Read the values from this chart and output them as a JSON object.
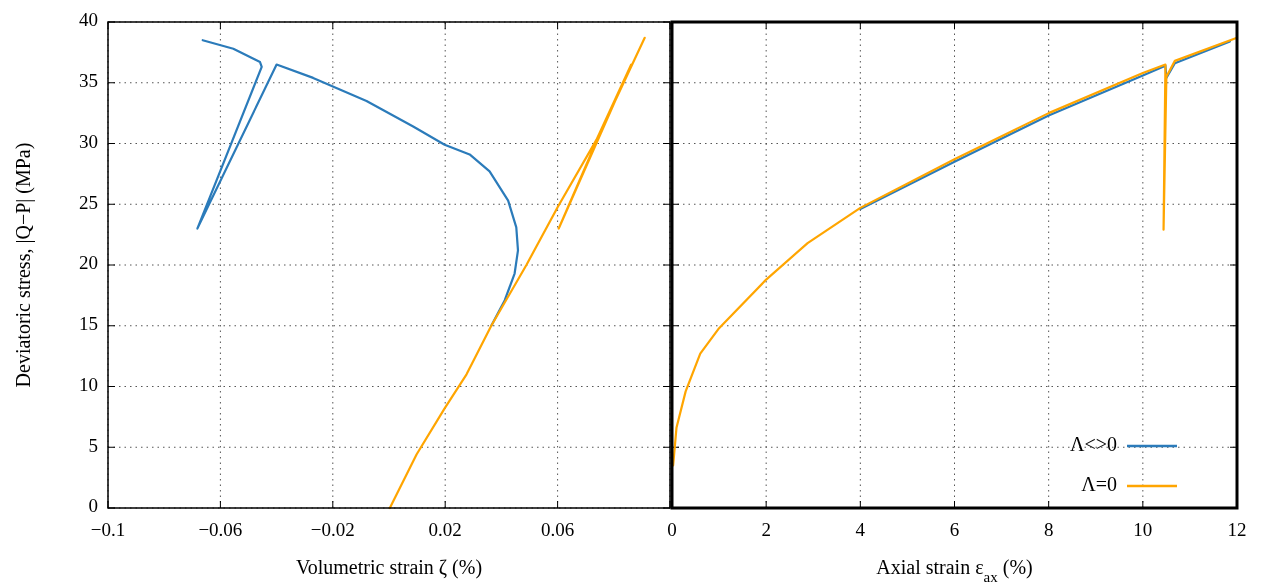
{
  "chart_data": [
    {
      "type": "line",
      "xlabel": "Volumetric strain ζ (%)",
      "ylabel": "Deviatoric stress, |Q−P| (MPa)",
      "xlim": [
        -0.1,
        0.1
      ],
      "xticks": [
        {
          "value": -0.1,
          "label": "−0.1"
        },
        {
          "value": -0.06,
          "label": "−0.06"
        },
        {
          "value": -0.02,
          "label": "−0.02"
        },
        0.02,
        0.06,
        {
          "value": 0.1,
          "label": null
        }
      ],
      "ylim": [
        0,
        40
      ],
      "yticks": [
        0,
        5,
        10,
        15,
        20,
        25,
        30,
        35,
        40
      ],
      "grid": true,
      "line_style": "solid",
      "series": [
        {
          "color": "#2b7bba",
          "x": [
            0.0364,
            0.0412,
            0.0447,
            0.0459,
            0.0453,
            0.0424,
            0.0358,
            0.0287,
            0.0198,
            0.0086,
            -0.008,
            -0.027,
            -0.04,
            -0.0682,
            -0.0453,
            -0.0459,
            -0.0554,
            -0.0663
          ],
          "values": [
            15.0,
            17.1,
            19.3,
            21.2,
            23.1,
            25.3,
            27.7,
            29.1,
            29.9,
            31.4,
            33.5,
            35.4,
            36.5,
            23.0,
            36.3,
            36.7,
            37.8,
            38.5
          ]
        },
        {
          "color": "#ffa500",
          "x": [
            0.0003,
            0.0098,
            0.0198,
            0.0276,
            0.0364,
            0.0489,
            0.0601,
            0.0738,
            0.0862,
            0.0604,
            0.075,
            0.091
          ],
          "values": [
            0,
            4.4,
            8.2,
            11.0,
            15.0,
            20.0,
            24.8,
            30.3,
            36.5,
            23.0,
            30.8,
            38.7
          ]
        }
      ]
    },
    {
      "type": "line",
      "xlabel": "Axial strain ε$_{ax}$ (%)",
      "xlim": [
        0,
        12
      ],
      "xticks": [
        0,
        2,
        4,
        6,
        8,
        10,
        12
      ],
      "ylim": [
        0,
        40
      ],
      "yticks": [
        0,
        5,
        10,
        15,
        20,
        25,
        30,
        35,
        40
      ],
      "tick_labels": "x",
      "grid": true,
      "legend": "bottom right",
      "line_style": "solid",
      "series": [
        {
          "name": "Λ<>0",
          "color": "#2b7bba",
          "x": [
            4.0,
            6.0,
            8.0,
            10.0,
            10.48,
            10.5,
            10.68,
            11.85
          ],
          "values": [
            24.6,
            28.5,
            32.3,
            35.6,
            36.4,
            35.4,
            36.6,
            38.4
          ]
        },
        {
          "name": "Λ=0",
          "color": "#ffa500",
          "x": [
            0.024,
            0.095,
            0.29,
            0.6,
            1.0,
            2.0,
            2.88,
            4.0,
            6.0,
            8.0,
            10.0,
            10.48,
            10.44,
            10.5,
            10.68,
            12.0
          ],
          "values": [
            3.5,
            6.6,
            9.6,
            12.7,
            14.8,
            18.8,
            21.8,
            24.7,
            28.7,
            32.5,
            35.8,
            36.5,
            22.9,
            35.5,
            36.8,
            38.7
          ]
        }
      ]
    }
  ]
}
